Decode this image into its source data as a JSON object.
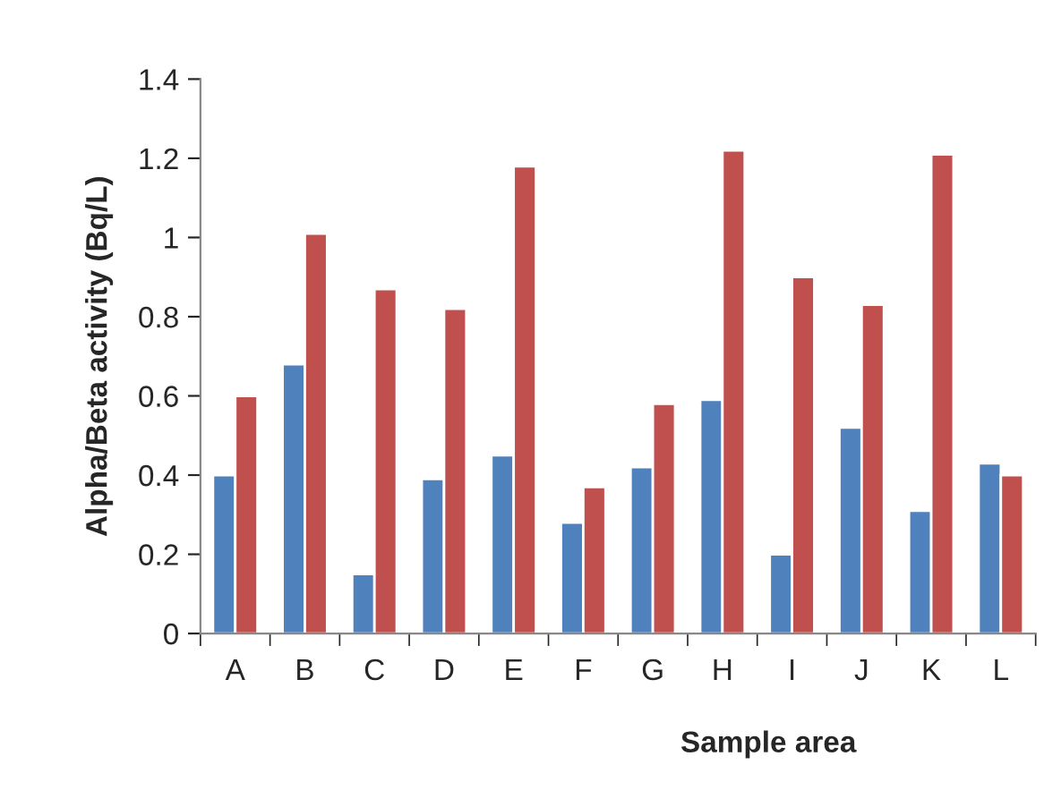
{
  "chart_data": {
    "type": "bar",
    "xlabel": "Sample area",
    "ylabel": "Alpha/Beta activity (Bq/L)",
    "categories": [
      "A",
      "B",
      "C",
      "D",
      "E",
      "F",
      "G",
      "H",
      "I",
      "J",
      "K",
      "L"
    ],
    "series": [
      {
        "color": "#4f81bd",
        "values": [
          0.4,
          0.68,
          0.15,
          0.39,
          0.45,
          0.28,
          0.42,
          0.59,
          0.2,
          0.52,
          0.31,
          0.43
        ]
      },
      {
        "color": "#c0504d",
        "values": [
          0.6,
          1.01,
          0.87,
          0.82,
          1.18,
          0.37,
          0.58,
          1.22,
          0.9,
          0.83,
          1.21,
          0.4
        ]
      }
    ],
    "ylim": [
      0,
      1.4
    ],
    "yticks": [
      0,
      0.2,
      0.4,
      0.6,
      0.8,
      1,
      1.2,
      1.4
    ],
    "grid": false,
    "legend": false
  }
}
